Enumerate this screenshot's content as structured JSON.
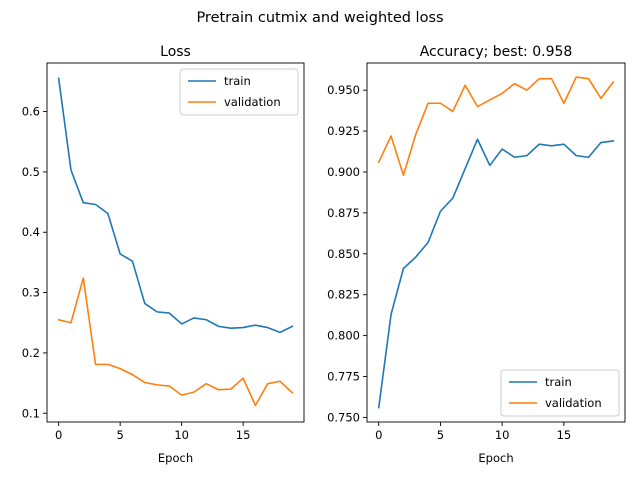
{
  "figure": {
    "suptitle": "Pretrain cutmix and weighted loss"
  },
  "colors": {
    "train": "#1f77b4",
    "validation": "#ff7f0e"
  },
  "chart_data": [
    {
      "type": "line",
      "title": "Loss",
      "xlabel": "Epoch",
      "ylabel": "",
      "xlim": [
        -0.95,
        19.95
      ],
      "ylim": [
        0.0855,
        0.6805
      ],
      "xticks": [
        0,
        5,
        10,
        15
      ],
      "yticks": [
        0.1,
        0.2,
        0.3,
        0.4,
        0.5,
        0.6
      ],
      "ytick_labels": [
        "0.1",
        "0.2",
        "0.3",
        "0.4",
        "0.5",
        "0.6"
      ],
      "legend": "top-right",
      "x": [
        0,
        1,
        2,
        3,
        4,
        5,
        6,
        7,
        8,
        9,
        10,
        11,
        12,
        13,
        14,
        15,
        16,
        17,
        18,
        19
      ],
      "series": [
        {
          "name": "train",
          "color": "#1f77b4",
          "values": [
            0.655,
            0.503,
            0.449,
            0.446,
            0.431,
            0.364,
            0.352,
            0.282,
            0.268,
            0.266,
            0.248,
            0.258,
            0.255,
            0.244,
            0.241,
            0.242,
            0.246,
            0.242,
            0.234,
            0.244
          ]
        },
        {
          "name": "validation",
          "color": "#ff7f0e",
          "values": [
            0.255,
            0.25,
            0.324,
            0.181,
            0.181,
            0.174,
            0.164,
            0.151,
            0.147,
            0.145,
            0.13,
            0.135,
            0.149,
            0.139,
            0.14,
            0.158,
            0.113,
            0.149,
            0.153,
            0.134
          ]
        }
      ]
    },
    {
      "type": "line",
      "title": "Accuracy; best: 0.958",
      "xlabel": "Epoch",
      "ylabel": "",
      "xlim": [
        -0.95,
        19.95
      ],
      "ylim": [
        0.7472,
        0.9666
      ],
      "xticks": [
        0,
        5,
        10,
        15
      ],
      "yticks": [
        0.75,
        0.775,
        0.8,
        0.825,
        0.85,
        0.875,
        0.9,
        0.925,
        0.95
      ],
      "ytick_labels": [
        "0.750",
        "0.775",
        "0.800",
        "0.825",
        "0.850",
        "0.875",
        "0.900",
        "0.925",
        "0.950"
      ],
      "legend": "bottom-right",
      "x": [
        0,
        1,
        2,
        3,
        4,
        5,
        6,
        7,
        8,
        9,
        10,
        11,
        12,
        13,
        14,
        15,
        16,
        17,
        18,
        19
      ],
      "series": [
        {
          "name": "train",
          "color": "#1f77b4",
          "values": [
            0.756,
            0.813,
            0.841,
            0.848,
            0.857,
            0.876,
            0.884,
            0.902,
            0.92,
            0.904,
            0.914,
            0.909,
            0.91,
            0.917,
            0.916,
            0.917,
            0.91,
            0.909,
            0.918,
            0.919
          ]
        },
        {
          "name": "validation",
          "color": "#ff7f0e",
          "values": [
            0.906,
            0.922,
            0.898,
            0.923,
            0.942,
            0.942,
            0.937,
            0.953,
            0.94,
            0.944,
            0.948,
            0.954,
            0.95,
            0.957,
            0.957,
            0.942,
            0.958,
            0.957,
            0.945,
            0.955
          ]
        }
      ]
    }
  ]
}
